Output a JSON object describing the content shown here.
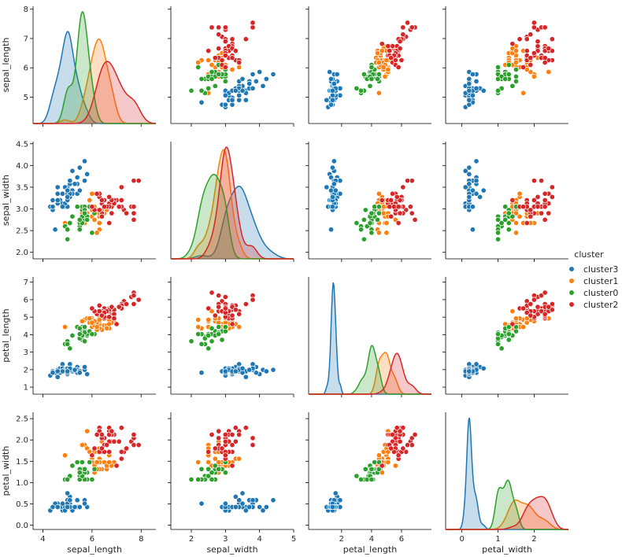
{
  "chart_data": {
    "type": "pairplot",
    "variables": [
      "sepal_length",
      "sepal_width",
      "petal_length",
      "petal_width"
    ],
    "hue": "cluster",
    "legend": {
      "title": "cluster",
      "placement": "right",
      "entries": [
        "cluster3",
        "cluster1",
        "cluster0",
        "cluster2"
      ]
    },
    "colors": {
      "cluster3": "#1f77b4",
      "cluster1": "#ff7f0e",
      "cluster0": "#2ca02c",
      "cluster2": "#d62728"
    },
    "axes": {
      "sepal_length": {
        "range": [
          3.6,
          8.6
        ],
        "ticks": [
          "4",
          "6",
          "8"
        ],
        "diag_ticks": [
          "5",
          "6",
          "7",
          "8"
        ],
        "diag_range": [
          4.1,
          8.1
        ]
      },
      "sepal_width": {
        "range": [
          1.4,
          5.0
        ],
        "ticks": [
          "2",
          "3",
          "4",
          "5"
        ],
        "diag_ticks": [
          "2.0",
          "2.5",
          "3.0",
          "3.5",
          "4.0",
          "4.5"
        ],
        "diag_range": [
          1.85,
          4.55
        ]
      },
      "petal_length": {
        "range": [
          -0.2,
          8.0
        ],
        "ticks": [
          "2",
          "4",
          "6"
        ],
        "diag_ticks": [
          "1",
          "2",
          "3",
          "4",
          "5",
          "6",
          "7"
        ],
        "diag_range": [
          0.6,
          7.3
        ]
      },
      "petal_width": {
        "range": [
          -0.45,
          2.95
        ],
        "ticks": [
          "0",
          "1",
          "2"
        ],
        "diag_ticks": [
          "0.0",
          "0.5",
          "1.0",
          "1.5",
          "2.0",
          "2.5"
        ],
        "diag_range": [
          -0.1,
          2.65
        ]
      }
    },
    "series": [
      {
        "name": "cluster3",
        "points": [
          [
            5.1,
            3.5,
            1.4,
            0.2
          ],
          [
            4.9,
            3.0,
            1.4,
            0.2
          ],
          [
            4.7,
            3.2,
            1.3,
            0.2
          ],
          [
            4.6,
            3.1,
            1.5,
            0.2
          ],
          [
            5.0,
            3.6,
            1.4,
            0.2
          ],
          [
            5.4,
            3.9,
            1.7,
            0.4
          ],
          [
            4.6,
            3.4,
            1.4,
            0.3
          ],
          [
            5.0,
            3.4,
            1.5,
            0.2
          ],
          [
            4.4,
            2.9,
            1.4,
            0.2
          ],
          [
            4.9,
            3.1,
            1.5,
            0.1
          ],
          [
            5.4,
            3.7,
            1.5,
            0.2
          ],
          [
            4.8,
            3.4,
            1.6,
            0.2
          ],
          [
            4.8,
            3.0,
            1.4,
            0.1
          ],
          [
            4.3,
            3.0,
            1.1,
            0.1
          ],
          [
            5.8,
            4.0,
            1.2,
            0.2
          ],
          [
            5.7,
            4.4,
            1.5,
            0.4
          ],
          [
            5.4,
            3.9,
            1.3,
            0.4
          ],
          [
            5.1,
            3.5,
            1.4,
            0.3
          ],
          [
            5.7,
            3.8,
            1.7,
            0.3
          ],
          [
            5.1,
            3.8,
            1.5,
            0.3
          ],
          [
            5.4,
            3.4,
            1.7,
            0.2
          ],
          [
            5.1,
            3.7,
            1.5,
            0.4
          ],
          [
            4.6,
            3.6,
            1.0,
            0.2
          ],
          [
            5.1,
            3.3,
            1.7,
            0.5
          ],
          [
            4.8,
            3.4,
            1.9,
            0.2
          ],
          [
            5.0,
            3.0,
            1.6,
            0.2
          ],
          [
            5.0,
            3.4,
            1.6,
            0.4
          ],
          [
            5.2,
            3.5,
            1.5,
            0.2
          ],
          [
            5.2,
            3.4,
            1.4,
            0.2
          ],
          [
            4.7,
            3.2,
            1.6,
            0.2
          ],
          [
            4.8,
            3.1,
            1.6,
            0.2
          ],
          [
            5.4,
            3.4,
            1.5,
            0.4
          ],
          [
            5.2,
            4.1,
            1.5,
            0.1
          ],
          [
            5.5,
            4.2,
            1.4,
            0.2
          ],
          [
            4.9,
            3.1,
            1.5,
            0.2
          ],
          [
            5.0,
            3.2,
            1.2,
            0.2
          ],
          [
            5.5,
            3.5,
            1.3,
            0.2
          ],
          [
            4.9,
            3.6,
            1.4,
            0.1
          ],
          [
            4.4,
            3.0,
            1.3,
            0.2
          ],
          [
            5.1,
            3.4,
            1.5,
            0.2
          ],
          [
            5.0,
            3.5,
            1.3,
            0.3
          ],
          [
            4.5,
            2.3,
            1.3,
            0.3
          ],
          [
            4.4,
            3.2,
            1.3,
            0.2
          ],
          [
            5.0,
            3.5,
            1.6,
            0.6
          ],
          [
            5.1,
            3.8,
            1.9,
            0.4
          ],
          [
            4.8,
            3.0,
            1.4,
            0.3
          ],
          [
            5.1,
            3.8,
            1.6,
            0.2
          ],
          [
            4.6,
            3.2,
            1.4,
            0.2
          ],
          [
            5.3,
            3.7,
            1.5,
            0.2
          ],
          [
            5.0,
            3.3,
            1.4,
            0.2
          ]
        ]
      },
      {
        "name": "cluster1",
        "points": [
          [
            6.4,
            3.2,
            4.5,
            1.5
          ],
          [
            6.9,
            3.1,
            4.9,
            1.5
          ],
          [
            6.5,
            2.8,
            4.6,
            1.5
          ],
          [
            6.3,
            3.3,
            4.7,
            1.6
          ],
          [
            6.6,
            2.9,
            4.6,
            1.3
          ],
          [
            6.1,
            2.9,
            4.7,
            1.4
          ],
          [
            6.7,
            3.1,
            4.4,
            1.4
          ],
          [
            5.9,
            3.2,
            4.8,
            1.8
          ],
          [
            6.3,
            2.5,
            4.9,
            1.5
          ],
          [
            6.1,
            2.8,
            4.7,
            1.2
          ],
          [
            6.4,
            2.9,
            4.3,
            1.3
          ],
          [
            6.6,
            3.0,
            4.4,
            1.4
          ],
          [
            6.8,
            2.8,
            4.8,
            1.4
          ],
          [
            6.7,
            3.0,
            5.0,
            1.7
          ],
          [
            6.0,
            2.9,
            4.5,
            1.5
          ],
          [
            6.0,
            2.7,
            5.1,
            1.6
          ],
          [
            6.0,
            3.4,
            4.5,
            1.6
          ],
          [
            6.7,
            3.1,
            4.7,
            1.5
          ],
          [
            6.3,
            2.3,
            4.4,
            1.3
          ],
          [
            6.1,
            3.0,
            4.6,
            1.4
          ],
          [
            6.2,
            2.9,
            4.3,
            1.3
          ],
          [
            5.8,
            2.7,
            5.1,
            1.9
          ],
          [
            6.3,
            2.9,
            5.6,
            1.8
          ],
          [
            6.5,
            3.0,
            5.8,
            2.2
          ],
          [
            4.9,
            2.5,
            4.5,
            1.7
          ],
          [
            5.7,
            2.5,
            5.0,
            2.0
          ],
          [
            5.8,
            2.8,
            5.1,
            2.4
          ],
          [
            6.4,
            3.2,
            5.3,
            2.3
          ],
          [
            6.5,
            3.0,
            5.5,
            1.8
          ],
          [
            6.0,
            2.2,
            5.0,
            1.5
          ],
          [
            5.6,
            2.8,
            4.9,
            2.0
          ],
          [
            6.3,
            2.7,
            4.9,
            1.8
          ],
          [
            6.2,
            2.8,
            4.8,
            1.8
          ],
          [
            6.1,
            3.0,
            4.9,
            1.8
          ],
          [
            6.4,
            2.8,
            5.6,
            2.1
          ],
          [
            6.3,
            2.8,
            5.1,
            1.5
          ],
          [
            6.1,
            2.6,
            5.6,
            1.4
          ],
          [
            6.4,
            3.1,
            5.5,
            1.8
          ],
          [
            6.0,
            3.0,
            4.8,
            1.8
          ],
          [
            5.8,
            2.7,
            5.1,
            1.9
          ],
          [
            6.3,
            2.5,
            5.0,
            1.9
          ],
          [
            6.5,
            3.0,
            5.2,
            2.0
          ],
          [
            5.9,
            3.0,
            5.1,
            1.8
          ],
          [
            6.2,
            3.4,
            5.4,
            2.3
          ],
          [
            6.7,
            3.0,
            5.2,
            2.3
          ],
          [
            6.9,
            3.1,
            5.1,
            2.3
          ],
          [
            6.4,
            2.7,
            5.3,
            1.9
          ],
          [
            6.8,
            3.0,
            5.5,
            2.1
          ],
          [
            5.6,
            3.0,
            4.5,
            1.5
          ],
          [
            6.2,
            2.2,
            4.5,
            1.5
          ]
        ]
      },
      {
        "name": "cluster0",
        "points": [
          [
            5.5,
            2.3,
            4.0,
            1.3
          ],
          [
            5.7,
            2.8,
            4.5,
            1.3
          ],
          [
            4.9,
            2.4,
            3.3,
            1.0
          ],
          [
            5.2,
            2.7,
            3.9,
            1.4
          ],
          [
            5.0,
            2.0,
            3.5,
            1.0
          ],
          [
            5.9,
            3.0,
            4.2,
            1.5
          ],
          [
            5.6,
            2.9,
            3.6,
            1.3
          ],
          [
            5.6,
            3.0,
            4.5,
            1.5
          ],
          [
            5.8,
            2.7,
            4.1,
            1.0
          ],
          [
            5.6,
            2.5,
            3.9,
            1.1
          ],
          [
            5.7,
            2.6,
            3.5,
            1.0
          ],
          [
            5.5,
            2.4,
            3.8,
            1.1
          ],
          [
            5.5,
            2.4,
            3.7,
            1.0
          ],
          [
            5.8,
            2.7,
            3.9,
            1.2
          ],
          [
            5.4,
            3.0,
            4.5,
            1.5
          ],
          [
            5.5,
            2.5,
            4.0,
            1.3
          ],
          [
            5.5,
            2.6,
            4.4,
            1.2
          ],
          [
            5.8,
            2.6,
            4.0,
            1.2
          ],
          [
            5.0,
            2.3,
            3.3,
            1.0
          ],
          [
            5.6,
            2.7,
            4.2,
            1.3
          ],
          [
            5.7,
            3.0,
            4.2,
            1.2
          ],
          [
            5.7,
            2.9,
            4.2,
            1.3
          ],
          [
            5.1,
            2.5,
            3.0,
            1.1
          ],
          [
            5.7,
            2.8,
            4.1,
            1.3
          ],
          [
            5.2,
            2.7,
            3.9,
            1.4
          ],
          [
            5.6,
            2.5,
            3.9,
            1.1
          ],
          [
            5.0,
            2.3,
            3.3,
            1.0
          ],
          [
            6.0,
            2.2,
            4.0,
            1.0
          ],
          [
            5.5,
            2.3,
            4.0,
            1.3
          ],
          [
            5.9,
            3.0,
            4.2,
            1.5
          ],
          [
            5.4,
            3.0,
            4.5,
            1.5
          ],
          [
            5.5,
            2.6,
            4.4,
            1.2
          ],
          [
            6.1,
            2.8,
            4.0,
            1.3
          ],
          [
            5.7,
            2.8,
            4.5,
            1.3
          ],
          [
            6.0,
            2.2,
            4.0,
            1.0
          ]
        ]
      },
      {
        "name": "cluster2",
        "points": [
          [
            7.0,
            3.2,
            4.7,
            1.4
          ],
          [
            6.3,
            3.3,
            6.0,
            2.5
          ],
          [
            7.1,
            3.0,
            5.9,
            2.1
          ],
          [
            6.5,
            3.0,
            5.8,
            2.2
          ],
          [
            7.6,
            3.0,
            6.6,
            2.1
          ],
          [
            7.3,
            2.9,
            6.3,
            1.8
          ],
          [
            6.7,
            2.5,
            5.8,
            1.8
          ],
          [
            7.2,
            3.6,
            6.1,
            2.5
          ],
          [
            6.8,
            3.0,
            5.5,
            2.1
          ],
          [
            7.7,
            3.8,
            6.7,
            2.2
          ],
          [
            7.7,
            2.6,
            6.9,
            2.3
          ],
          [
            6.9,
            3.2,
            5.7,
            2.3
          ],
          [
            7.7,
            2.8,
            6.7,
            2.0
          ],
          [
            6.7,
            3.3,
            5.7,
            2.1
          ],
          [
            7.2,
            3.2,
            6.0,
            1.8
          ],
          [
            7.2,
            3.0,
            5.8,
            1.6
          ],
          [
            7.4,
            2.8,
            6.1,
            1.9
          ],
          [
            7.9,
            3.8,
            6.4,
            2.0
          ],
          [
            6.4,
            2.8,
            5.6,
            2.2
          ],
          [
            7.7,
            3.0,
            6.1,
            2.3
          ],
          [
            6.3,
            3.4,
            5.6,
            2.4
          ],
          [
            6.4,
            3.1,
            5.5,
            1.8
          ],
          [
            6.9,
            3.1,
            5.4,
            2.1
          ],
          [
            6.7,
            3.1,
            5.6,
            2.4
          ],
          [
            6.9,
            3.1,
            5.1,
            2.3
          ],
          [
            6.8,
            3.2,
            5.9,
            2.3
          ],
          [
            6.7,
            3.3,
            5.7,
            2.5
          ],
          [
            6.7,
            3.0,
            5.2,
            2.3
          ],
          [
            6.5,
            3.2,
            5.1,
            2.0
          ],
          [
            6.4,
            3.2,
            5.3,
            2.3
          ],
          [
            6.2,
            3.4,
            5.4,
            2.3
          ],
          [
            6.5,
            3.0,
            5.2,
            2.0
          ],
          [
            6.6,
            3.0,
            5.6,
            2.0
          ],
          [
            7.1,
            3.0,
            5.9,
            2.1
          ],
          [
            6.3,
            2.9,
            5.6,
            1.8
          ],
          [
            6.1,
            2.9,
            5.6,
            1.9
          ],
          [
            6.5,
            3.0,
            5.5,
            1.8
          ],
          [
            6.8,
            2.8,
            5.9,
            2.4
          ],
          [
            6.0,
            3.0,
            5.8,
            1.7
          ],
          [
            6.4,
            2.7,
            5.3,
            1.9
          ]
        ]
      }
    ]
  }
}
